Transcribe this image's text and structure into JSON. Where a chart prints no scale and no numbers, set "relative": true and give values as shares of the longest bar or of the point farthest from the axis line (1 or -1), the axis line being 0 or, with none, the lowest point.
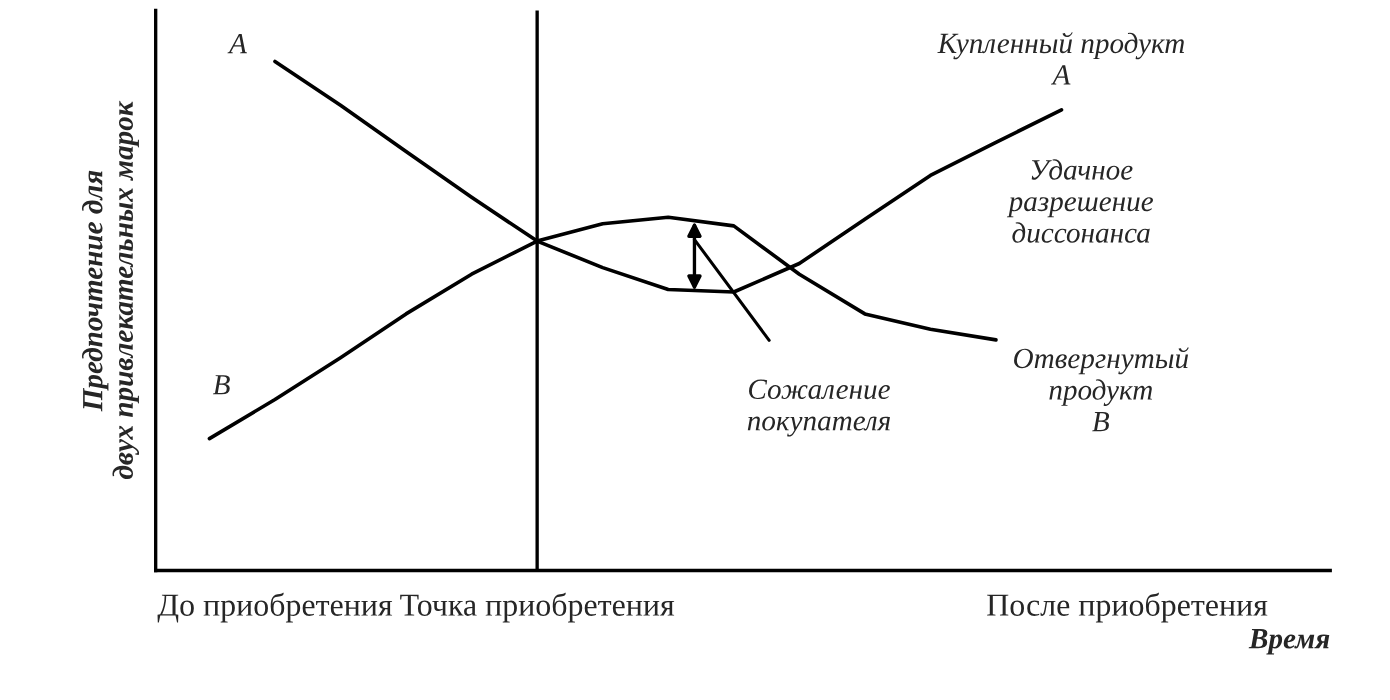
{
  "chart_data": {
    "type": "line",
    "relative": true,
    "categories": [
      null,
      "До приобретения",
      null,
      null,
      null,
      "Точка приобретения",
      null,
      null,
      null,
      null,
      null,
      null,
      null,
      null,
      "После приобретения",
      null,
      null,
      null
    ],
    "series": [
      {
        "color": "#000000",
        "values": [
          null,
          1.0,
          0.914,
          0.823,
          0.733,
          0.647,
          0.595,
          0.552,
          0.547,
          0.603,
          0.69,
          0.776,
          0.841,
          0.905,
          null,
          null,
          null,
          null
        ]
      },
      {
        "color": "#000000",
        "values": [
          0.259,
          0.336,
          0.418,
          0.504,
          0.582,
          0.647,
          0.681,
          0.694,
          0.677,
          0.582,
          0.504,
          0.474,
          0.453,
          null,
          null,
          null,
          null,
          null
        ]
      }
    ],
    "ylabel": "Предпочтение для\nдвух привлекательных марок",
    "xlabel": "Время",
    "ref_lines": [
      {
        "axis": "x",
        "value": "Точка приобретения",
        "color": "#000000"
      }
    ],
    "annotations": [
      "A",
      "B",
      "Купленный продукт\nA",
      "Удачное\nразрешение\nдиссонанса",
      "Отвергнутый\nпродукт\nB",
      "Сожаление\nпокупателя"
    ],
    "legend": false,
    "grid": false,
    "marker": "none",
    "line_style": "solid"
  }
}
